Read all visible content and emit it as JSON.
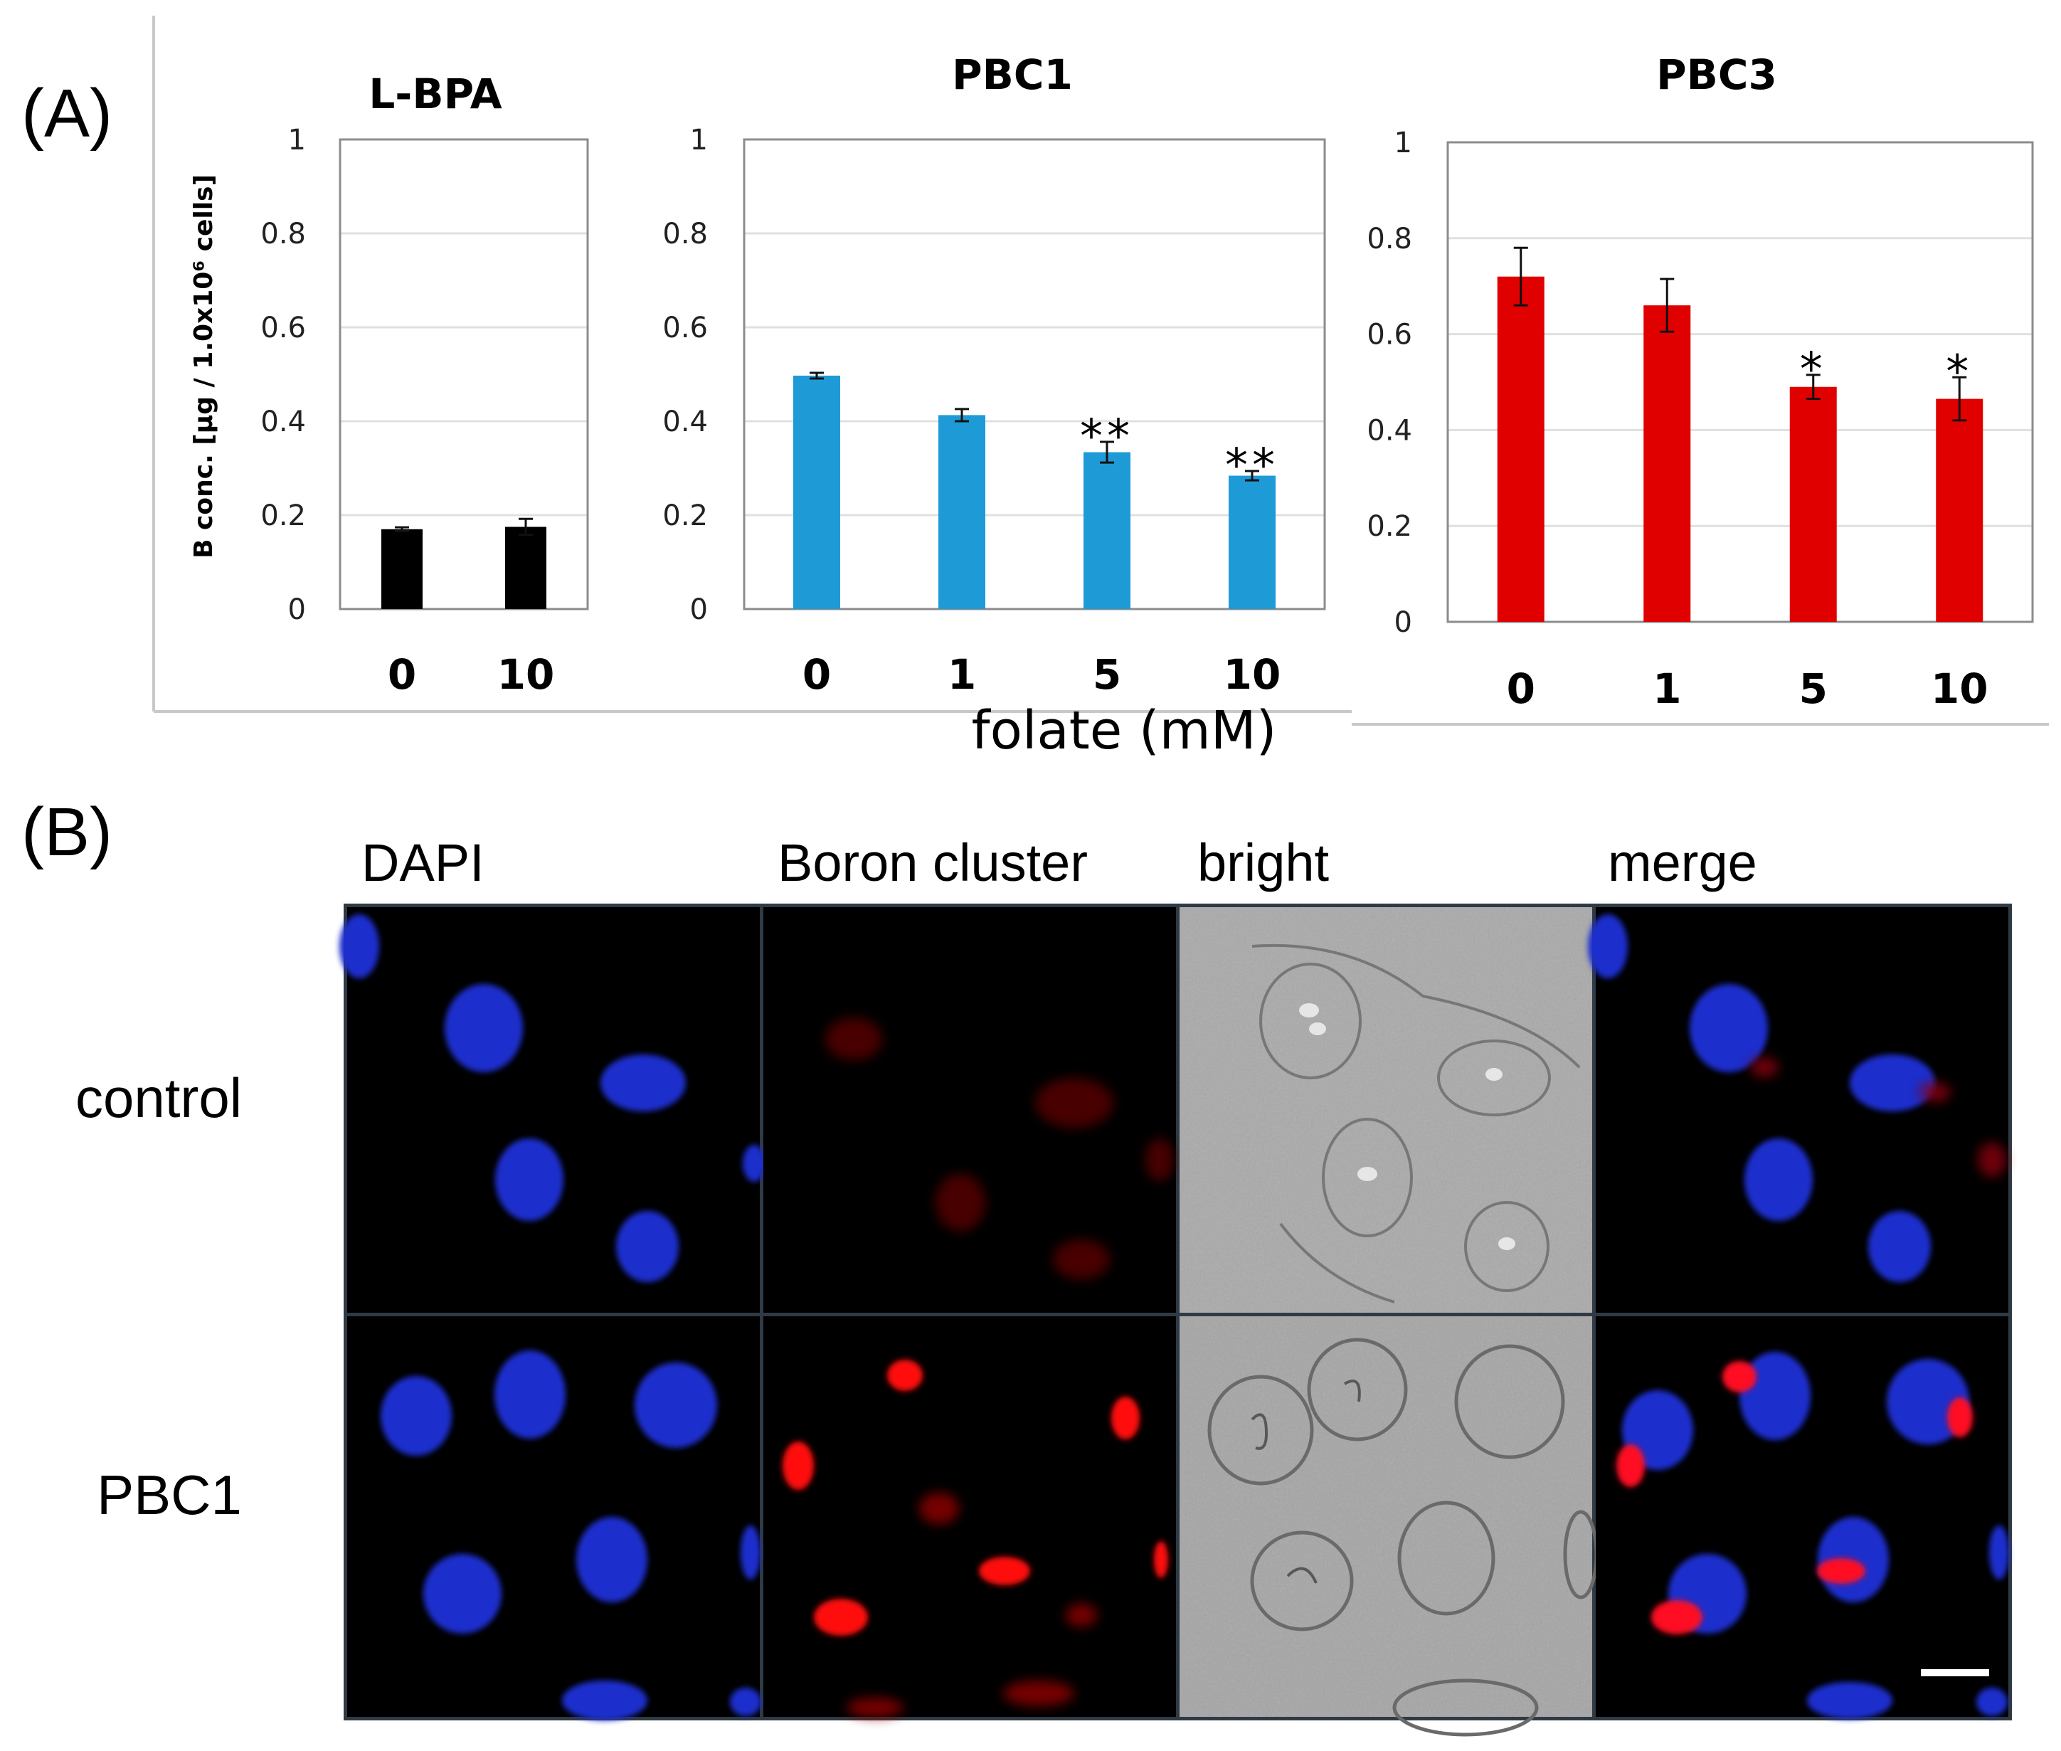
{
  "panel_a": {
    "label": "(A)",
    "y_axis_title": "B conc. [µg / 1.0x10⁶ cells]",
    "x_axis_title": "folate (mM)",
    "tick_labels": [
      "0",
      "0.2",
      "0.4",
      "0.6",
      "0.8",
      "1"
    ]
  },
  "panel_b": {
    "label": "(B)",
    "columns": [
      "DAPI",
      "Boron cluster",
      "bright",
      "merge"
    ],
    "rows": [
      "control",
      "PBC1"
    ]
  },
  "colors": {
    "L-BPA": "#000000",
    "PBC1": "#1e9bd7",
    "PBC3": "#e00000",
    "dapi": "#1a2ad8",
    "boron": "#ff1010"
  },
  "chart_data": [
    {
      "type": "bar",
      "title": "L-BPA",
      "categories": [
        "0",
        "10"
      ],
      "values": [
        0.17,
        0.175
      ],
      "errors": [
        0.004,
        0.017
      ],
      "significance": [
        "",
        ""
      ],
      "ylabel": "B conc. [µg / 1.0x10⁶ cells]",
      "ylim": [
        0,
        1
      ],
      "yticks": [
        0,
        0.2,
        0.4,
        0.6,
        0.8,
        1
      ],
      "grid": true,
      "color": "#000000"
    },
    {
      "type": "bar",
      "title": "PBC1",
      "categories": [
        "0",
        "1",
        "5",
        "10"
      ],
      "values": [
        0.497,
        0.413,
        0.334,
        0.284
      ],
      "errors": [
        0.006,
        0.013,
        0.022,
        0.01
      ],
      "significance": [
        "",
        "",
        "**",
        "**"
      ],
      "xlabel": "folate (mM)",
      "ylim": [
        0,
        1
      ],
      "yticks": [
        0,
        0.2,
        0.4,
        0.6,
        0.8,
        1
      ],
      "grid": true,
      "color": "#1e9bd7"
    },
    {
      "type": "bar",
      "title": "PBC3",
      "categories": [
        "0",
        "1",
        "5",
        "10"
      ],
      "values": [
        0.72,
        0.66,
        0.49,
        0.465
      ],
      "errors": [
        0.06,
        0.055,
        0.025,
        0.045
      ],
      "significance": [
        "",
        "",
        "*",
        "*"
      ],
      "ylim": [
        0,
        1
      ],
      "yticks": [
        0,
        0.2,
        0.4,
        0.6,
        0.8,
        1
      ],
      "grid": true,
      "color": "#e00000"
    }
  ]
}
